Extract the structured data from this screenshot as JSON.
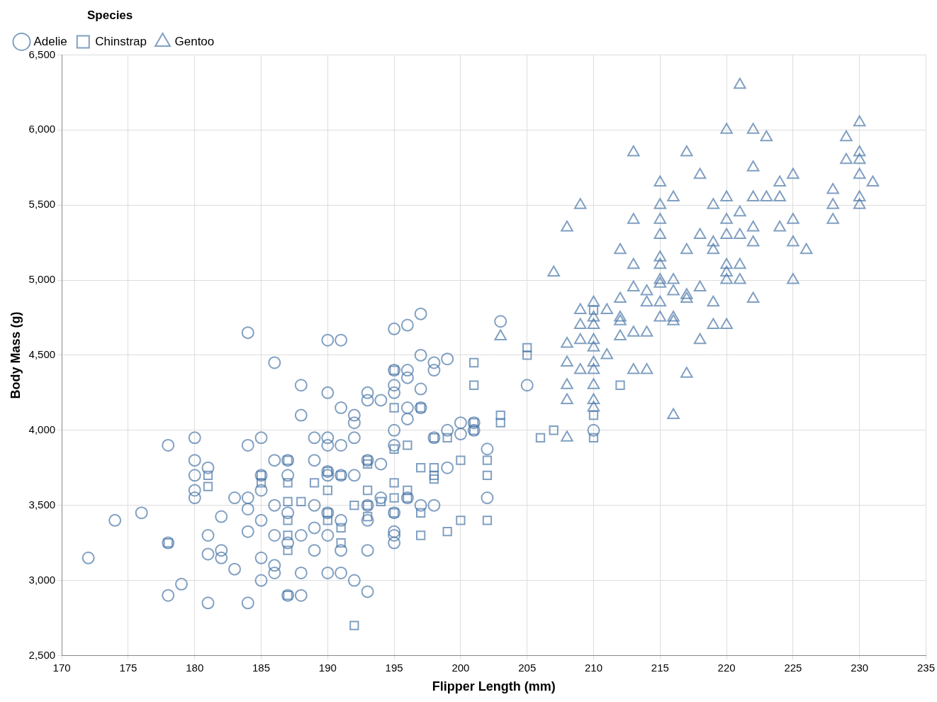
{
  "chart_data": {
    "type": "scatter",
    "x_label": "Flipper Length (mm)",
    "y_label": "Body Mass (g)",
    "legend_title": "Species",
    "legend": "top-left",
    "grid": true,
    "xlim": [
      170,
      235
    ],
    "xticks": [
      170,
      175,
      180,
      185,
      190,
      195,
      200,
      205,
      210,
      215,
      220,
      225,
      230,
      235
    ],
    "ylim": [
      2500,
      6500
    ],
    "yticks": [
      {
        "value": 2500,
        "label": "2,500"
      },
      {
        "value": 3000,
        "label": "3,000"
      },
      {
        "value": 3500,
        "label": "3,500"
      },
      {
        "value": 4000,
        "label": "4,000"
      },
      {
        "value": 4500,
        "label": "4,500"
      },
      {
        "value": 5000,
        "label": "5,000"
      },
      {
        "value": 5500,
        "label": "5,500"
      },
      {
        "value": 6000,
        "label": "6,000"
      },
      {
        "value": 6500,
        "label": "6,500"
      }
    ],
    "series": [
      {
        "name": "Adelie",
        "color": "#4c78a8",
        "marker": "circle",
        "x": [
          172,
          174,
          176,
          178,
          178,
          178,
          179,
          180,
          180,
          180,
          180,
          180,
          181,
          181,
          181,
          181,
          182,
          182,
          182,
          183,
          183,
          184,
          184,
          184,
          184,
          184,
          184,
          185,
          185,
          185,
          185,
          185,
          185,
          186,
          186,
          186,
          186,
          186,
          186,
          187,
          187,
          187,
          187,
          187,
          188,
          188,
          188,
          188,
          188,
          189,
          189,
          189,
          189,
          189,
          190,
          190,
          190,
          190,
          190,
          190,
          190,
          190,
          190,
          191,
          191,
          191,
          191,
          191,
          191,
          191,
          192,
          192,
          192,
          192,
          192,
          193,
          193,
          193,
          193,
          193,
          193,
          193,
          194,
          194,
          194,
          195,
          195,
          195,
          195,
          195,
          195,
          195,
          195,
          195,
          195,
          196,
          196,
          196,
          196,
          196,
          196,
          197,
          197,
          197,
          197,
          197,
          198,
          198,
          198,
          198,
          199,
          199,
          199,
          200,
          200,
          201,
          201,
          202,
          202,
          203,
          205,
          210
        ],
        "values": [
          3150,
          3400,
          3450,
          3900,
          2900,
          3250,
          2975,
          3950,
          3800,
          3700,
          3600,
          3550,
          3750,
          3300,
          3175,
          2850,
          3200,
          3150,
          3425,
          3550,
          3075,
          4650,
          3900,
          3550,
          3475,
          3325,
          2850,
          3950,
          3700,
          3600,
          3400,
          3150,
          3000,
          4450,
          3800,
          3500,
          3300,
          3100,
          3050,
          3800,
          3700,
          3450,
          3250,
          2900,
          4300,
          4100,
          3300,
          3050,
          2900,
          3950,
          3800,
          3500,
          3350,
          3200,
          4600,
          4250,
          3950,
          3900,
          3725,
          3700,
          3450,
          3300,
          3050,
          4600,
          4150,
          3900,
          3700,
          3400,
          3200,
          3050,
          4100,
          4050,
          3950,
          3700,
          3000,
          4250,
          4200,
          3800,
          3500,
          3400,
          3200,
          2925,
          4200,
          3775,
          3550,
          4675,
          4400,
          4300,
          4250,
          4000,
          3900,
          3450,
          3325,
          3300,
          3250,
          4700,
          4400,
          4350,
          4150,
          4075,
          3550,
          4775,
          4500,
          4275,
          4150,
          3500,
          4450,
          4400,
          3950,
          3500,
          4475,
          4000,
          3750,
          4050,
          3975,
          4000,
          4050,
          3875,
          3550,
          4725,
          4300,
          4000
        ]
      },
      {
        "name": "Chinstrap",
        "color": "#4c78a8",
        "marker": "square",
        "x": [
          178,
          181,
          181,
          185,
          185,
          187,
          187,
          187,
          187,
          187,
          187,
          187,
          188,
          189,
          190,
          190,
          190,
          190,
          191,
          191,
          191,
          192,
          192,
          193,
          193,
          193,
          193,
          193,
          194,
          195,
          195,
          195,
          195,
          195,
          195,
          196,
          196,
          196,
          197,
          197,
          197,
          197,
          198,
          198,
          198,
          198,
          199,
          199,
          200,
          200,
          201,
          201,
          201,
          201,
          202,
          202,
          202,
          203,
          203,
          205,
          205,
          206,
          207,
          210,
          210,
          210,
          212
        ],
        "values": [
          3250,
          3700,
          3625,
          3700,
          3650,
          3800,
          3650,
          3525,
          3400,
          3300,
          3200,
          2900,
          3525,
          3650,
          3725,
          3600,
          3450,
          3400,
          3700,
          3250,
          3350,
          3500,
          2700,
          3800,
          3775,
          3600,
          3500,
          3425,
          3525,
          4400,
          4150,
          3875,
          3650,
          3550,
          3450,
          3900,
          3550,
          3600,
          4150,
          3750,
          3450,
          3300,
          3950,
          3700,
          3675,
          3750,
          3950,
          3325,
          3800,
          3400,
          4050,
          4000,
          4450,
          4300,
          3800,
          3700,
          3400,
          4050,
          4100,
          4550,
          4500,
          3950,
          4000,
          4800,
          4100,
          3950,
          4300
        ]
      },
      {
        "name": "Gentoo",
        "color": "#4c78a8",
        "marker": "triangle",
        "x": [
          203,
          207,
          208,
          208,
          208,
          208,
          208,
          208,
          209,
          209,
          209,
          209,
          209,
          210,
          210,
          210,
          210,
          210,
          210,
          210,
          210,
          210,
          210,
          211,
          211,
          212,
          212,
          212,
          212,
          212,
          213,
          213,
          213,
          213,
          213,
          213,
          214,
          214,
          214,
          214,
          215,
          215,
          215,
          215,
          215,
          215,
          215,
          215,
          215,
          215,
          216,
          216,
          216,
          216,
          216,
          216,
          217,
          217,
          217,
          217,
          217,
          218,
          218,
          218,
          218,
          219,
          219,
          219,
          219,
          219,
          220,
          220,
          220,
          220,
          220,
          220,
          220,
          220,
          221,
          221,
          221,
          221,
          221,
          222,
          222,
          222,
          222,
          222,
          222,
          223,
          223,
          224,
          224,
          224,
          225,
          225,
          225,
          225,
          226,
          228,
          228,
          228,
          229,
          229,
          230,
          230,
          230,
          230,
          230,
          230,
          231
        ],
        "values": [
          4625,
          5050,
          5350,
          4575,
          4450,
          4300,
          4200,
          3950,
          5500,
          4800,
          4700,
          4600,
          4400,
          4850,
          4750,
          4700,
          4600,
          4550,
          4450,
          4400,
          4300,
          4200,
          4150,
          4800,
          4500,
          5200,
          4875,
          4750,
          4725,
          4625,
          5850,
          5400,
          5100,
          4950,
          4650,
          4400,
          4925,
          4850,
          4650,
          4400,
          5650,
          5500,
          5400,
          5300,
          5150,
          5100,
          5000,
          4975,
          4850,
          4750,
          5550,
          5000,
          4925,
          4750,
          4725,
          4100,
          5850,
          5200,
          4900,
          4875,
          4375,
          5700,
          5300,
          4950,
          4600,
          5500,
          5250,
          5200,
          4850,
          4700,
          6000,
          5550,
          5400,
          5300,
          5100,
          5050,
          5000,
          4700,
          6300,
          5450,
          5300,
          5100,
          5000,
          6000,
          5750,
          5550,
          5350,
          5250,
          4875,
          5950,
          5550,
          5650,
          5550,
          5350,
          5700,
          5400,
          5250,
          5000,
          5200,
          5600,
          5500,
          5400,
          5950,
          5800,
          6050,
          5850,
          5800,
          5700,
          5550,
          5500,
          5650
        ]
      }
    ]
  }
}
